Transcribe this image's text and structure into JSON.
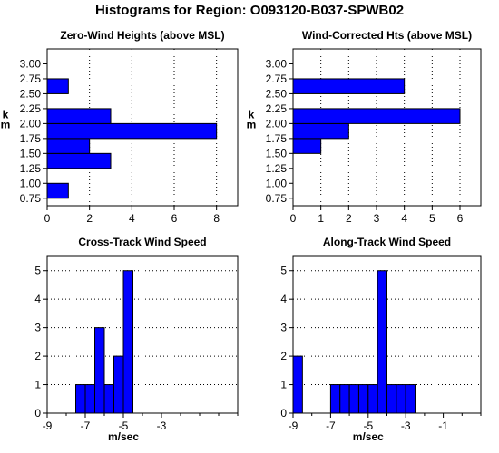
{
  "page_title": "Histograms for Region:  O093120-B037-SPWB02",
  "colors": {
    "bar": "#0000ff",
    "edge": "#000000",
    "grid": "#000000"
  },
  "chart_data": [
    {
      "id": "zero-wind",
      "type": "bar",
      "orientation": "horizontal",
      "title": "Zero-Wind Heights (above MSL)",
      "ylabel": "k\nm",
      "xlabel": "",
      "bin_width": 0.25,
      "bins": [
        0.75,
        1.25,
        1.5,
        1.75,
        2.0,
        2.5
      ],
      "values": [
        1,
        3,
        2,
        8,
        3,
        1
      ],
      "xlim": [
        0,
        9
      ],
      "ylim": [
        0.625,
        3.25
      ],
      "xticks": [
        "0",
        "2",
        "4",
        "6",
        "8"
      ],
      "xtick_vals": [
        0,
        2,
        4,
        6,
        8
      ],
      "yticks": [
        "0.75",
        "1.00",
        "1.25",
        "1.50",
        "1.75",
        "2.00",
        "2.25",
        "2.50",
        "2.75",
        "3.00"
      ],
      "ytick_vals": [
        0.75,
        1.0,
        1.25,
        1.5,
        1.75,
        2.0,
        2.25,
        2.5,
        2.75,
        3.0
      ],
      "grid": "vertical-dotted"
    },
    {
      "id": "wind-corrected",
      "type": "bar",
      "orientation": "horizontal",
      "title": "Wind-Corrected Hts (above MSL)",
      "ylabel": "k\nm",
      "xlabel": "",
      "bin_width": 0.25,
      "bins": [
        1.5,
        1.75,
        2.0,
        2.5
      ],
      "values": [
        1,
        2,
        6,
        4
      ],
      "xlim": [
        0,
        6.75
      ],
      "ylim": [
        0.625,
        3.25
      ],
      "xticks": [
        "0",
        "1",
        "2",
        "3",
        "4",
        "5",
        "6"
      ],
      "xtick_vals": [
        0,
        1,
        2,
        3,
        4,
        5,
        6
      ],
      "yticks": [
        "0.75",
        "1.00",
        "1.25",
        "1.50",
        "1.75",
        "2.00",
        "2.25",
        "2.50",
        "2.75",
        "3.00"
      ],
      "ytick_vals": [
        0.75,
        1.0,
        1.25,
        1.5,
        1.75,
        2.0,
        2.25,
        2.5,
        2.75,
        3.0
      ],
      "grid": "vertical-dotted"
    },
    {
      "id": "cross-track",
      "type": "bar",
      "orientation": "vertical",
      "title": "Cross-Track Wind Speed",
      "ylabel": "",
      "xlabel": "m/sec",
      "bin_width": 0.5,
      "bins": [
        -8,
        -7.5,
        -7,
        -6.5,
        -6,
        -5.5,
        -5,
        -4.5,
        -4,
        -3.5,
        -3,
        -2.5
      ],
      "values": [
        0,
        1,
        1,
        3,
        1,
        2,
        5,
        0,
        0,
        0,
        0,
        0
      ],
      "bin_starts": [
        -7.5,
        -7,
        -6.5,
        -6,
        -5.5,
        -5,
        -4.5
      ],
      "bin_values": [
        1,
        1,
        3,
        1,
        2,
        5,
        0
      ],
      "xlim": [
        -9,
        1
      ],
      "ylim": [
        0,
        5.5
      ],
      "xticks": [
        "-9",
        "-7",
        "-5",
        "-3"
      ],
      "xtick_vals": [
        -9,
        -7,
        -5,
        -3
      ],
      "yticks": [
        "0",
        "1",
        "2",
        "3",
        "4",
        "5"
      ],
      "ytick_vals": [
        0,
        1,
        2,
        3,
        4,
        5
      ],
      "grid": "horizontal-dotted"
    },
    {
      "id": "along-track",
      "type": "bar",
      "orientation": "vertical",
      "title": "Along-Track Wind Speed",
      "ylabel": "",
      "xlabel": "m/sec",
      "bin_width": 0.5,
      "bin_starts": [
        -9,
        -7,
        -6.5,
        -6,
        -5.5,
        -5,
        -4.5,
        -4,
        -3.5,
        -3
      ],
      "bin_values": [
        2,
        1,
        1,
        1,
        1,
        1,
        5,
        1,
        1,
        1
      ],
      "xlim": [
        -9,
        1
      ],
      "ylim": [
        0,
        5.5
      ],
      "xticks": [
        "-9",
        "-7",
        "-5",
        "-3",
        "-1"
      ],
      "xtick_vals": [
        -9,
        -7,
        -5,
        -3,
        -1
      ],
      "yticks": [
        "0",
        "1",
        "2",
        "3",
        "4",
        "5"
      ],
      "ytick_vals": [
        0,
        1,
        2,
        3,
        4,
        5
      ],
      "grid": "horizontal-dotted"
    }
  ]
}
